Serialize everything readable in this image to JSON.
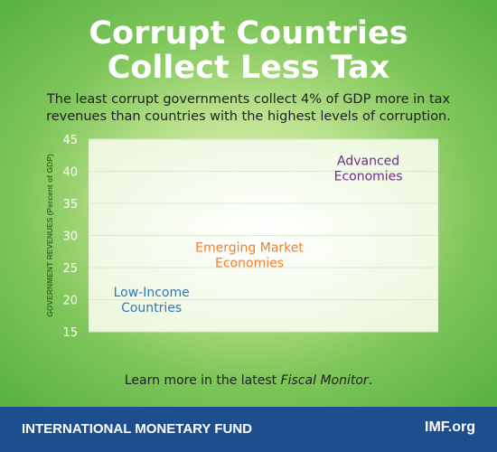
{
  "title_line1": "Corrupt Countries",
  "title_line2": "Collect Less Tax",
  "subtitle": "The least corrupt governments collect 4% of GDP more in tax revenues than countries with the highest levels of corruption.",
  "chart_data": {
    "type": "scatter",
    "ylabel": "GOVERNMENT REVENUES (Percent of GDP)",
    "ylim": [
      15,
      45
    ],
    "yticks": [
      15,
      20,
      25,
      30,
      35,
      40,
      45
    ],
    "grid": true,
    "series": [
      {
        "label": [
          "Low-Income",
          "Countries"
        ],
        "y": 19.5,
        "xpos": 0.18,
        "color": "#2f78b7"
      },
      {
        "label": [
          "Emerging Market",
          "Economies"
        ],
        "y": 26.5,
        "xpos": 0.46,
        "color": "#ef7f2d"
      },
      {
        "label": [
          "Advanced",
          "Economies"
        ],
        "y": 40.0,
        "xpos": 0.8,
        "color": "#6e2a8c"
      }
    ]
  },
  "footer_note_prefix": "Learn more in the latest ",
  "footer_note_emphasis": "Fiscal Monitor",
  "footer_note_suffix": ".",
  "org_name": "INTERNATIONAL MONETARY FUND",
  "site": "IMF.org",
  "colors": {
    "brand_bar": "#1d4f8f",
    "title": "#ffffff"
  }
}
